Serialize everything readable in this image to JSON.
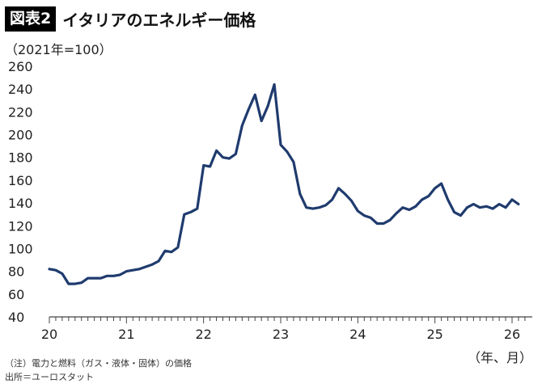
{
  "header": {
    "figure_label": "図表2",
    "title": "イタリアのエネルギー価格"
  },
  "unit_label": "（2021年=100）",
  "x_unit_label": "（年、月）",
  "notes": {
    "note1": "（注）電力と燃料（ガス・液体・固体）の価格",
    "source": "出所＝ユーロスタット"
  },
  "colors": {
    "line": "#1f3b6e",
    "axis": "#444444"
  },
  "chart_data": {
    "type": "line",
    "title": "イタリアのエネルギー価格",
    "ylabel": "（2021年=100）",
    "xlabel": "（年、月）",
    "ylim": [
      40,
      260
    ],
    "yticks": [
      260,
      240,
      220,
      200,
      180,
      160,
      140,
      120,
      100,
      80,
      60,
      40
    ],
    "xlim": [
      2020,
      2026.2
    ],
    "xticks": [
      {
        "value": 2020,
        "label": "20"
      },
      {
        "value": 2021,
        "label": "21"
      },
      {
        "value": 2022,
        "label": "22"
      },
      {
        "value": 2023,
        "label": "23"
      },
      {
        "value": 2024,
        "label": "24"
      },
      {
        "value": 2025,
        "label": "25"
      },
      {
        "value": 2026,
        "label": "26"
      }
    ],
    "grid": false,
    "series": [
      {
        "x": [
          2020.0,
          2020.083,
          2020.167,
          2020.25,
          2020.333,
          2020.417,
          2020.5,
          2020.583,
          2020.667,
          2020.75,
          2020.833,
          2020.917,
          2021.0,
          2021.083,
          2021.167,
          2021.25,
          2021.333,
          2021.417,
          2021.5,
          2021.583,
          2021.667,
          2021.75,
          2021.833,
          2021.917,
          2022.0,
          2022.083,
          2022.167,
          2022.25,
          2022.333,
          2022.417,
          2022.5,
          2022.583,
          2022.667,
          2022.75,
          2022.833,
          2022.917,
          2023.0,
          2023.083,
          2023.167,
          2023.25,
          2023.333,
          2023.417,
          2023.5,
          2023.583,
          2023.667,
          2023.75,
          2023.833,
          2023.917,
          2024.0,
          2024.083,
          2024.167,
          2024.25,
          2024.333,
          2024.417,
          2024.5,
          2024.583,
          2024.667,
          2024.75,
          2024.833,
          2024.917,
          2025.0,
          2025.083,
          2025.167,
          2025.25,
          2025.333,
          2025.417,
          2025.5,
          2025.583,
          2025.667,
          2025.75,
          2025.833,
          2025.917,
          2026.0,
          2026.083
        ],
        "values": [
          82,
          81,
          78,
          69,
          69,
          70,
          74,
          74,
          74,
          76,
          76,
          77,
          80,
          81,
          82,
          84,
          86,
          89,
          98,
          97,
          101,
          130,
          132,
          135,
          173,
          172,
          186,
          180,
          179,
          183,
          208,
          222,
          235,
          212,
          225,
          244,
          191,
          185,
          176,
          148,
          136,
          135,
          136,
          138,
          143,
          153,
          148,
          142,
          133,
          129,
          127,
          122,
          122,
          125,
          131,
          136,
          134,
          137,
          143,
          146,
          153,
          157,
          143,
          132,
          129,
          136,
          139,
          136,
          137,
          135,
          139,
          136,
          143,
          139
        ]
      }
    ]
  }
}
